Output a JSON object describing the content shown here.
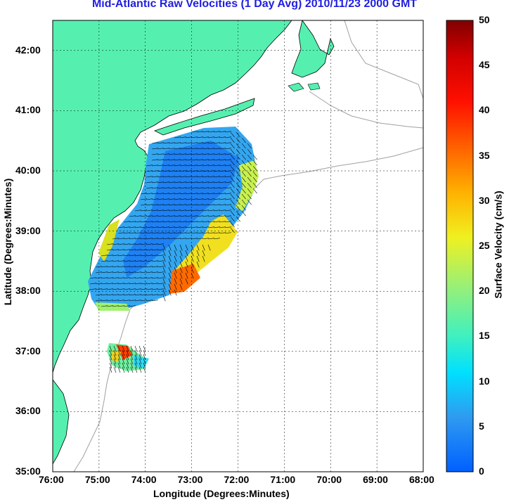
{
  "title": "Mid-Atlantic Raw Velocities (1 Day Avg) 2010/11/23 2000 GMT",
  "xaxis": {
    "label": "Longitude (Degrees:Minutes)",
    "ticks": [
      "76:00",
      "75:00",
      "74:00",
      "73:00",
      "72:00",
      "71:00",
      "70:00",
      "69:00",
      "68:00"
    ]
  },
  "yaxis": {
    "label": "Latitude (Degrees:Minutes)",
    "ticks": [
      "35:00",
      "36:00",
      "37:00",
      "38:00",
      "39:00",
      "40:00",
      "41:00",
      "42:00"
    ]
  },
  "colorbar": {
    "label": "Surface Velocity (cm/s)",
    "ticks": [
      "0",
      "5",
      "10",
      "15",
      "20",
      "25",
      "30",
      "35",
      "40",
      "45",
      "50"
    ],
    "min": 0,
    "max": 50
  },
  "map": {
    "lon_range": [
      -76,
      -68
    ],
    "lat_range": [
      35,
      42.5
    ],
    "land_color": "#55f0b0",
    "coast_color": "#000000",
    "bathy_color": "#a0a0a0",
    "grid": true
  }
}
